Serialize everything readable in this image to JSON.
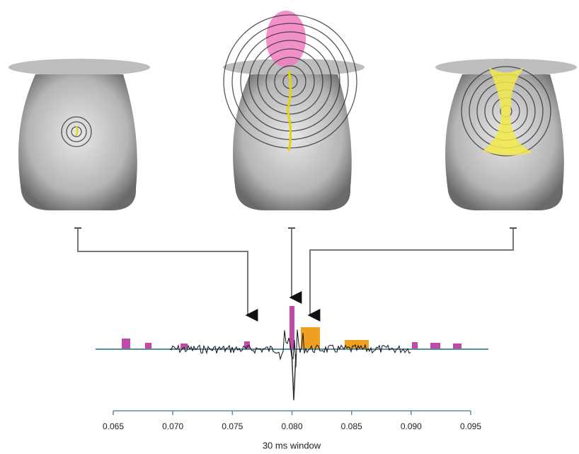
{
  "chart_data": {
    "type": "axis",
    "xlabel": "30 ms window",
    "xlim": [
      0.065,
      0.095
    ],
    "xticks": [
      0.065,
      {
        "value": 0.07,
        "label": "0.070"
      },
      0.075,
      {
        "value": 0.08,
        "label": "0.080"
      },
      0.085,
      {
        "value": 0.09,
        "label": "0.090"
      },
      0.095
    ]
  }
}
